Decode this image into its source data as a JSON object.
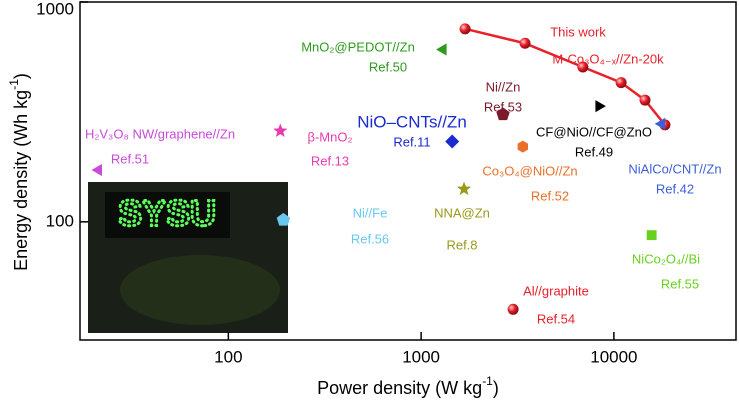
{
  "chart_data": {
    "type": "scatter",
    "xlabel": {
      "text": "Power density (W kg",
      "sup": "-1",
      "end": ")"
    },
    "ylabel": {
      "text": "Energy density (Wh kg",
      "sup": "-1",
      "end": ")"
    },
    "xscale": "log",
    "yscale": "log",
    "xlim": [
      17,
      43000
    ],
    "ylim": [
      29,
      1000
    ],
    "xticks": [
      100,
      1000,
      10000
    ],
    "yticks": [
      100,
      1000
    ],
    "inset_text": "SYSU",
    "series": [
      {
        "name": "This work",
        "ref": "M-Co₃O₄₋ₓ//Zn-20k",
        "color": "#e8202a",
        "marker": "circle",
        "line": true,
        "x": [
          1690,
          3460,
          6900,
          10900,
          14500,
          18400
        ],
        "y": [
          755,
          649,
          506,
          430,
          358,
          276
        ]
      },
      {
        "name": "MnO₂@PEDOT//Zn",
        "ref": "Ref.50",
        "color": "#2e9a1e",
        "marker": "triangle-left",
        "x": [
          1300
        ],
        "y": [
          608
        ]
      },
      {
        "name": "Ni//Zn",
        "ref": "Ref.53",
        "color": "#7a1a2a",
        "marker": "pentagon",
        "x": [
          2660
        ],
        "y": [
          308
        ]
      },
      {
        "name": "CF@NiO//CF@ZnO",
        "ref": "Ref.49",
        "color": "#000000",
        "marker": "triangle-right",
        "x": [
          8360
        ],
        "y": [
          336
        ]
      },
      {
        "name": "NiAlCo/CNT//Zn",
        "ref": "Ref.42",
        "color": "#3c5fd8",
        "marker": "triangle-left",
        "x": [
          17700
        ],
        "y": [
          279
        ]
      },
      {
        "name": "NiO–CNTs//Zn",
        "ref": "Ref.11",
        "color": "#1a2bd1",
        "marker": "diamond",
        "x": [
          1450
        ],
        "y": [
          232
        ]
      },
      {
        "name": "Co₃O₄@NiO//Zn",
        "ref": "Ref.52",
        "color": "#e8702a",
        "marker": "hexagon",
        "x": [
          3370
        ],
        "y": [
          220
        ]
      },
      {
        "name": "NNA@Zn",
        "ref": "Ref.8",
        "color": "#9a9a1a",
        "marker": "star",
        "x": [
          1670
        ],
        "y": [
          141
        ]
      },
      {
        "name": "β-MnO₂",
        "ref": "Ref.13",
        "color": "#e83ab0",
        "marker": "star",
        "x": [
          186
        ],
        "y": [
          259
        ]
      },
      {
        "name": "H₂V₃O₈ NW/graphene//Zn",
        "ref": "Ref.51",
        "color": "#c84ad8",
        "marker": "triangle-left",
        "x": [
          21.2
        ],
        "y": [
          172
        ]
      },
      {
        "name": "Ni//Fe",
        "ref": "Ref.56",
        "color": "#6ac8f0",
        "marker": "pentagon",
        "x": [
          193
        ],
        "y": [
          102
        ]
      },
      {
        "name": "NiCo₂O₄//Bi",
        "ref": "Ref.55",
        "color": "#6ad020",
        "marker": "square",
        "x": [
          15700
        ],
        "y": [
          87
        ]
      },
      {
        "name": "Al//graphite",
        "ref": "Ref.54",
        "color": "#e8202a",
        "marker": "circle",
        "x": [
          3000
        ],
        "y": [
          40
        ]
      }
    ]
  }
}
